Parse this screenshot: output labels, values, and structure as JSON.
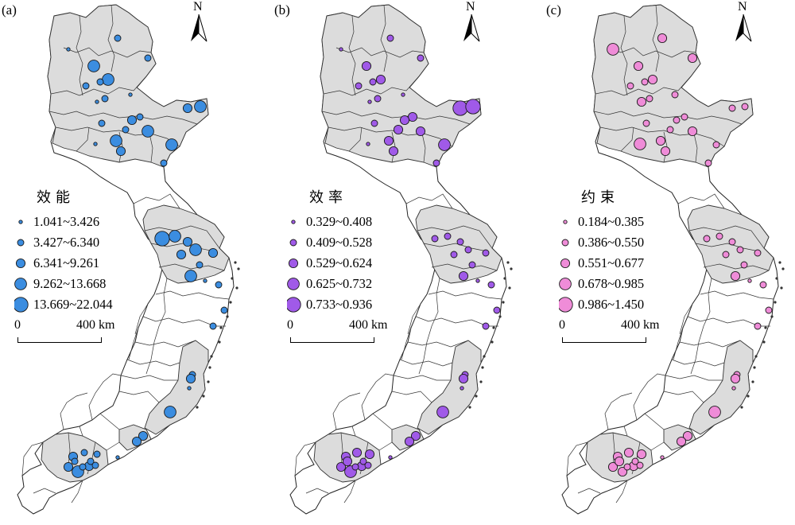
{
  "scale_bar": {
    "zero": "0",
    "distance": "400 km"
  },
  "north_label": "N",
  "panels": [
    {
      "label": "(a)",
      "legend_title": "效能",
      "fill": "#3b8de0",
      "classes": [
        "1.041~3.426",
        "3.427~6.340",
        "6.341~9.261",
        "9.262~13.668",
        "13.669~22.044"
      ],
      "points": [
        [
          86,
          62,
          1
        ],
        [
          148,
          48,
          2
        ],
        [
          186,
          73,
          2
        ],
        [
          118,
          83,
          4
        ],
        [
          136,
          100,
          4
        ],
        [
          126,
          103,
          2
        ],
        [
          108,
          108,
          2
        ],
        [
          122,
          128,
          1
        ],
        [
          132,
          124,
          2
        ],
        [
          164,
          119,
          1
        ],
        [
          236,
          136,
          3
        ],
        [
          252,
          134,
          4
        ],
        [
          176,
          147,
          2
        ],
        [
          166,
          151,
          3
        ],
        [
          158,
          163,
          2
        ],
        [
          128,
          155,
          2
        ],
        [
          146,
          177,
          4
        ],
        [
          186,
          165,
          4
        ],
        [
          216,
          182,
          4
        ],
        [
          152,
          190,
          3
        ],
        [
          120,
          181,
          1
        ],
        [
          206,
          205,
          2
        ],
        [
          204,
          300,
          5
        ],
        [
          220,
          297,
          4
        ],
        [
          236,
          304,
          3
        ],
        [
          246,
          314,
          4
        ],
        [
          228,
          320,
          3
        ],
        [
          268,
          318,
          3
        ],
        [
          251,
          333,
          2
        ],
        [
          240,
          347,
          4
        ],
        [
          258,
          353,
          1
        ],
        [
          275,
          358,
          2
        ],
        [
          282,
          390,
          2
        ],
        [
          268,
          410,
          2
        ],
        [
          242,
          471,
          2
        ],
        [
          240,
          476,
          3
        ],
        [
          238,
          488,
          1
        ],
        [
          214,
          518,
          4
        ],
        [
          180,
          548,
          3
        ],
        [
          172,
          555,
          3
        ],
        [
          148,
          575,
          1
        ],
        [
          92,
          574,
          3
        ],
        [
          106,
          569,
          2
        ],
        [
          122,
          571,
          2
        ],
        [
          86,
          587,
          3
        ],
        [
          98,
          593,
          4
        ],
        [
          112,
          586,
          3
        ],
        [
          114,
          580,
          2
        ],
        [
          120,
          585,
          2
        ],
        [
          104,
          587,
          2
        ],
        [
          94,
          580,
          2
        ]
      ]
    },
    {
      "label": "(b)",
      "legend_title": "效率",
      "fill": "#a05ae8",
      "classes": [
        "0.329~0.408",
        "0.409~0.528",
        "0.529~0.624",
        "0.625~0.732",
        "0.733~0.936"
      ],
      "points": [
        [
          86,
          62,
          1
        ],
        [
          148,
          48,
          2
        ],
        [
          186,
          73,
          2
        ],
        [
          118,
          83,
          3
        ],
        [
          136,
          100,
          3
        ],
        [
          126,
          103,
          2
        ],
        [
          108,
          108,
          2
        ],
        [
          122,
          128,
          1
        ],
        [
          132,
          124,
          2
        ],
        [
          164,
          119,
          1
        ],
        [
          236,
          136,
          5
        ],
        [
          252,
          134,
          5
        ],
        [
          176,
          147,
          3
        ],
        [
          166,
          151,
          3
        ],
        [
          158,
          163,
          3
        ],
        [
          128,
          155,
          2
        ],
        [
          146,
          177,
          3
        ],
        [
          186,
          165,
          3
        ],
        [
          216,
          182,
          4
        ],
        [
          152,
          190,
          3
        ],
        [
          120,
          181,
          1
        ],
        [
          206,
          205,
          2
        ],
        [
          204,
          300,
          2
        ],
        [
          220,
          297,
          2
        ],
        [
          236,
          304,
          2
        ],
        [
          246,
          314,
          2
        ],
        [
          228,
          320,
          2
        ],
        [
          268,
          318,
          2
        ],
        [
          251,
          333,
          2
        ],
        [
          240,
          347,
          3
        ],
        [
          258,
          353,
          1
        ],
        [
          275,
          358,
          2
        ],
        [
          282,
          390,
          2
        ],
        [
          268,
          410,
          2
        ],
        [
          242,
          471,
          2
        ],
        [
          240,
          476,
          3
        ],
        [
          238,
          488,
          1
        ],
        [
          214,
          518,
          4
        ],
        [
          180,
          548,
          3
        ],
        [
          172,
          555,
          3
        ],
        [
          148,
          575,
          1
        ],
        [
          92,
          574,
          3
        ],
        [
          106,
          569,
          3
        ],
        [
          122,
          571,
          3
        ],
        [
          86,
          587,
          3
        ],
        [
          98,
          593,
          4
        ],
        [
          112,
          586,
          3
        ],
        [
          114,
          580,
          2
        ],
        [
          120,
          585,
          2
        ],
        [
          104,
          587,
          2
        ],
        [
          94,
          580,
          3
        ]
      ]
    },
    {
      "label": "(c)",
      "legend_title": "约束",
      "fill": "#ef8cd8",
      "classes": [
        "0.184~0.385",
        "0.386~0.550",
        "0.551~0.677",
        "0.678~0.985",
        "0.986~1.450"
      ],
      "points": [
        [
          86,
          62,
          4
        ],
        [
          148,
          48,
          3
        ],
        [
          186,
          73,
          3
        ],
        [
          118,
          83,
          3
        ],
        [
          136,
          100,
          3
        ],
        [
          126,
          103,
          2
        ],
        [
          108,
          108,
          2
        ],
        [
          122,
          128,
          3
        ],
        [
          132,
          124,
          2
        ],
        [
          164,
          119,
          2
        ],
        [
          236,
          136,
          2
        ],
        [
          252,
          134,
          2
        ],
        [
          176,
          147,
          2
        ],
        [
          166,
          151,
          2
        ],
        [
          158,
          163,
          2
        ],
        [
          128,
          155,
          2
        ],
        [
          146,
          177,
          3
        ],
        [
          186,
          165,
          3
        ],
        [
          216,
          182,
          2
        ],
        [
          152,
          190,
          3
        ],
        [
          120,
          181,
          4
        ],
        [
          206,
          205,
          2
        ],
        [
          204,
          300,
          2
        ],
        [
          220,
          297,
          2
        ],
        [
          236,
          304,
          2
        ],
        [
          246,
          314,
          2
        ],
        [
          228,
          320,
          2
        ],
        [
          268,
          318,
          2
        ],
        [
          251,
          333,
          2
        ],
        [
          240,
          347,
          3
        ],
        [
          258,
          353,
          1
        ],
        [
          275,
          358,
          2
        ],
        [
          282,
          390,
          2
        ],
        [
          268,
          410,
          2
        ],
        [
          242,
          471,
          2
        ],
        [
          240,
          476,
          3
        ],
        [
          238,
          488,
          1
        ],
        [
          214,
          518,
          4
        ],
        [
          180,
          548,
          3
        ],
        [
          172,
          555,
          3
        ],
        [
          148,
          575,
          1
        ],
        [
          92,
          574,
          3
        ],
        [
          106,
          569,
          3
        ],
        [
          122,
          571,
          3
        ],
        [
          86,
          587,
          3
        ],
        [
          98,
          593,
          3
        ],
        [
          112,
          586,
          3
        ],
        [
          114,
          580,
          2
        ],
        [
          120,
          585,
          2
        ],
        [
          104,
          587,
          2
        ],
        [
          94,
          580,
          3
        ]
      ]
    }
  ]
}
